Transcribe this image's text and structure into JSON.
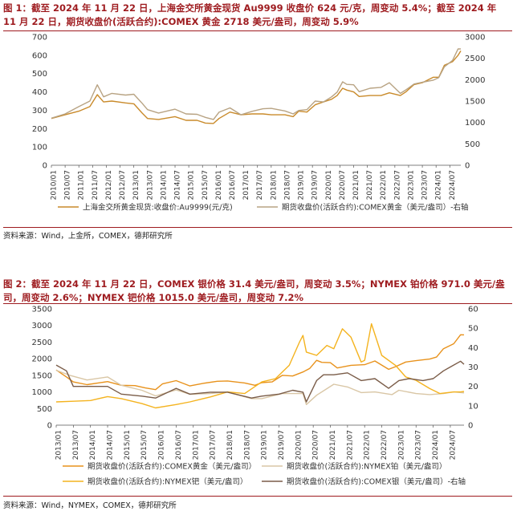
{
  "chart_data": [
    {
      "type": "line",
      "title": "图 1：截至 2024 年 11 月 22 日，上海金交所黄金现货 Au9999 收盘价 624 元/克，周变动 5.4%；截至 2024 年 11 月 22 日，期货收盘价(活跃合约):COMEX 黄金 2718 美元/盎司，周变动 5.9%",
      "source": "资料来源：Wind，上金所，COMEX，德邦研究所",
      "x_ticks": [
        "2010/01",
        "2010/07",
        "2011/01",
        "2011/07",
        "2012/01",
        "2012/07",
        "2013/01",
        "2013/07",
        "2014/01",
        "2014/07",
        "2015/01",
        "2015/07",
        "2016/01",
        "2016/07",
        "2017/01",
        "2017/07",
        "2018/01",
        "2018/07",
        "2019/01",
        "2019/07",
        "2020/01",
        "2020/07",
        "2021/01",
        "2021/07",
        "2022/01",
        "2022/07",
        "2023/01",
        "2023/07",
        "2024/01",
        "2024/07"
      ],
      "x_range": [
        2010.0,
        2024.9
      ],
      "ylim_left": [
        0,
        700
      ],
      "ylim_right": [
        0,
        3000
      ],
      "left_ticks": [
        0,
        100,
        200,
        300,
        400,
        500,
        600,
        700
      ],
      "right_ticks": [
        0,
        500,
        1000,
        1500,
        2000,
        2500,
        3000
      ],
      "series": [
        {
          "name": "上海金交所黄金现货:收盘价:Au9999(元/克)",
          "axis": "left",
          "color": "#c98a2a",
          "x": [
            2010.0,
            2010.5,
            2011.0,
            2011.4,
            2011.67,
            2011.9,
            2012.2,
            2012.7,
            2013.0,
            2013.3,
            2013.5,
            2013.9,
            2014.5,
            2014.9,
            2015.3,
            2015.6,
            2015.9,
            2016.1,
            2016.5,
            2016.9,
            2017.3,
            2017.7,
            2018.0,
            2018.5,
            2018.8,
            2019.0,
            2019.3,
            2019.6,
            2019.9,
            2020.2,
            2020.4,
            2020.6,
            2020.75,
            2021.0,
            2021.2,
            2021.6,
            2022.0,
            2022.3,
            2022.7,
            2022.9,
            2023.2,
            2023.5,
            2023.9,
            2024.1,
            2024.3,
            2024.6,
            2024.8,
            2024.9
          ],
          "values": [
            255,
            275,
            295,
            320,
            385,
            345,
            350,
            340,
            335,
            285,
            255,
            250,
            265,
            245,
            245,
            230,
            228,
            255,
            290,
            275,
            280,
            280,
            275,
            275,
            265,
            295,
            290,
            330,
            345,
            360,
            380,
            420,
            410,
            400,
            375,
            380,
            380,
            395,
            380,
            400,
            440,
            450,
            480,
            480,
            545,
            565,
            600,
            624
          ]
        },
        {
          "name": "期货收盘价(活跃合约):COMEX黄金（美元/盎司）-右轴",
          "axis": "right",
          "color": "#b8a383",
          "x": [
            2010.0,
            2010.5,
            2011.0,
            2011.4,
            2011.67,
            2011.9,
            2012.2,
            2012.7,
            2013.0,
            2013.3,
            2013.5,
            2013.9,
            2014.5,
            2014.9,
            2015.3,
            2015.6,
            2015.9,
            2016.1,
            2016.5,
            2016.9,
            2017.3,
            2017.7,
            2018.0,
            2018.5,
            2018.8,
            2019.0,
            2019.3,
            2019.6,
            2019.9,
            2020.2,
            2020.4,
            2020.6,
            2020.75,
            2021.0,
            2021.2,
            2021.6,
            2022.0,
            2022.3,
            2022.7,
            2022.9,
            2023.2,
            2023.5,
            2023.9,
            2024.1,
            2024.3,
            2024.6,
            2024.8,
            2024.9
          ],
          "values": [
            1100,
            1200,
            1370,
            1500,
            1880,
            1600,
            1680,
            1640,
            1660,
            1450,
            1300,
            1220,
            1310,
            1200,
            1190,
            1120,
            1070,
            1240,
            1340,
            1180,
            1260,
            1320,
            1330,
            1270,
            1200,
            1280,
            1300,
            1500,
            1480,
            1600,
            1710,
            1950,
            1890,
            1880,
            1720,
            1800,
            1820,
            1930,
            1680,
            1760,
            1900,
            1940,
            1990,
            2050,
            2300,
            2450,
            2720,
            2718
          ]
        }
      ]
    },
    {
      "type": "line",
      "title": "图 2：截至 2024 年 11 月 22 日，COMEX 银价格 31.4 美元/盎司，周变动 3.5%；NYMEX 铂价格 971.0 美元/盎司，周变动 2.6%；NYMEX 钯价格 1015.0 美元/盎司，周变动 7.2%",
      "source": "资料来源：Wind，NYMEX，COMEX，德邦研究所",
      "x_ticks": [
        "2013/01",
        "2013/07",
        "2014/01",
        "2014/07",
        "2015/01",
        "2015/07",
        "2016/01",
        "2016/07",
        "2017/01",
        "2017/07",
        "2018/01",
        "2018/07",
        "2019/01",
        "2019/07",
        "2020/01",
        "2020/07",
        "2021/01",
        "2021/07",
        "2022/01",
        "2022/07",
        "2023/01",
        "2023/07",
        "2024/01",
        "2024/07"
      ],
      "x_range": [
        2013.0,
        2024.9
      ],
      "ylim_left": [
        0,
        3500
      ],
      "ylim_right": [
        0,
        60
      ],
      "left_ticks": [
        0,
        500,
        1000,
        1500,
        2000,
        2500,
        3000,
        3500
      ],
      "right_ticks": [
        0,
        10,
        20,
        30,
        40,
        50,
        60
      ],
      "series": [
        {
          "name": "期货收盘价(活跃合约):COMEX黄金（美元/盎司）",
          "axis": "left",
          "color": "#e8921c",
          "x": [
            2013.0,
            2013.3,
            2013.5,
            2013.9,
            2014.5,
            2014.9,
            2015.3,
            2015.6,
            2015.9,
            2016.1,
            2016.5,
            2016.9,
            2017.3,
            2017.7,
            2018.0,
            2018.5,
            2018.8,
            2019.0,
            2019.3,
            2019.6,
            2019.9,
            2020.2,
            2020.4,
            2020.6,
            2020.75,
            2021.0,
            2021.2,
            2021.6,
            2022.0,
            2022.3,
            2022.7,
            2022.9,
            2023.2,
            2023.5,
            2023.9,
            2024.1,
            2024.3,
            2024.6,
            2024.8,
            2024.9
          ],
          "values": [
            1660,
            1450,
            1300,
            1220,
            1310,
            1200,
            1190,
            1120,
            1070,
            1240,
            1340,
            1180,
            1260,
            1320,
            1330,
            1270,
            1200,
            1280,
            1300,
            1500,
            1480,
            1600,
            1710,
            1950,
            1890,
            1880,
            1720,
            1800,
            1820,
            1930,
            1680,
            1760,
            1900,
            1940,
            1990,
            2050,
            2300,
            2450,
            2720,
            2718
          ]
        },
        {
          "name": "期货收盘价(活跃合约):NYMEX铂（美元/盎司）",
          "axis": "left",
          "color": "#d9c6a5",
          "x": [
            2013.0,
            2013.4,
            2013.9,
            2014.5,
            2014.9,
            2015.5,
            2015.9,
            2016.5,
            2016.9,
            2017.5,
            2018.0,
            2018.7,
            2019.0,
            2019.6,
            2020.2,
            2020.3,
            2020.6,
            2021.1,
            2021.5,
            2021.9,
            2022.3,
            2022.8,
            2023.0,
            2023.5,
            2023.9,
            2024.3,
            2024.6,
            2024.9
          ],
          "values": [
            1650,
            1500,
            1360,
            1450,
            1200,
            1050,
            880,
            1060,
            930,
            950,
            1000,
            800,
            800,
            950,
            950,
            620,
            900,
            1230,
            1150,
            980,
            1000,
            920,
            1050,
            950,
            920,
            950,
            1000,
            971
          ]
        },
        {
          "name": "期货收盘价(活跃合约):NYMEX钯（美元/盎司）",
          "axis": "left",
          "color": "#f4b31f",
          "x": [
            2013.0,
            2013.5,
            2014.0,
            2014.5,
            2014.9,
            2015.5,
            2015.9,
            2016.5,
            2016.9,
            2017.5,
            2018.0,
            2018.5,
            2019.0,
            2019.4,
            2019.8,
            2020.1,
            2020.2,
            2020.3,
            2020.6,
            2020.9,
            2021.1,
            2021.35,
            2021.6,
            2021.9,
            2022.0,
            2022.2,
            2022.5,
            2022.9,
            2023.2,
            2023.5,
            2023.9,
            2024.2,
            2024.6,
            2024.8,
            2024.9
          ],
          "values": [
            700,
            720,
            740,
            860,
            800,
            650,
            520,
            620,
            700,
            850,
            1000,
            950,
            1300,
            1400,
            1800,
            2500,
            2700,
            2200,
            2100,
            2400,
            2300,
            2900,
            2650,
            1900,
            1950,
            3050,
            2100,
            1800,
            1450,
            1350,
            1100,
            950,
            1000,
            1000,
            1015
          ]
        },
        {
          "name": "期货收盘价(活跃合约):COMEX银（美元/盎司）-右轴",
          "axis": "right",
          "color": "#7a5c48",
          "x": [
            2013.0,
            2013.3,
            2013.5,
            2013.9,
            2014.5,
            2014.9,
            2015.5,
            2015.9,
            2016.5,
            2016.9,
            2017.5,
            2018.0,
            2018.7,
            2019.0,
            2019.5,
            2019.9,
            2020.2,
            2020.3,
            2020.6,
            2020.8,
            2021.1,
            2021.5,
            2021.9,
            2022.3,
            2022.7,
            2023.0,
            2023.3,
            2023.7,
            2024.0,
            2024.3,
            2024.5,
            2024.8,
            2024.9
          ],
          "values": [
            31,
            28,
            20,
            20,
            20,
            16,
            15,
            14,
            19,
            16,
            17,
            17,
            14,
            15,
            16,
            18,
            17,
            12,
            23,
            26,
            26,
            27,
            23,
            24,
            19,
            23,
            24,
            23,
            24,
            28,
            30,
            33,
            31.4
          ]
        }
      ]
    }
  ]
}
